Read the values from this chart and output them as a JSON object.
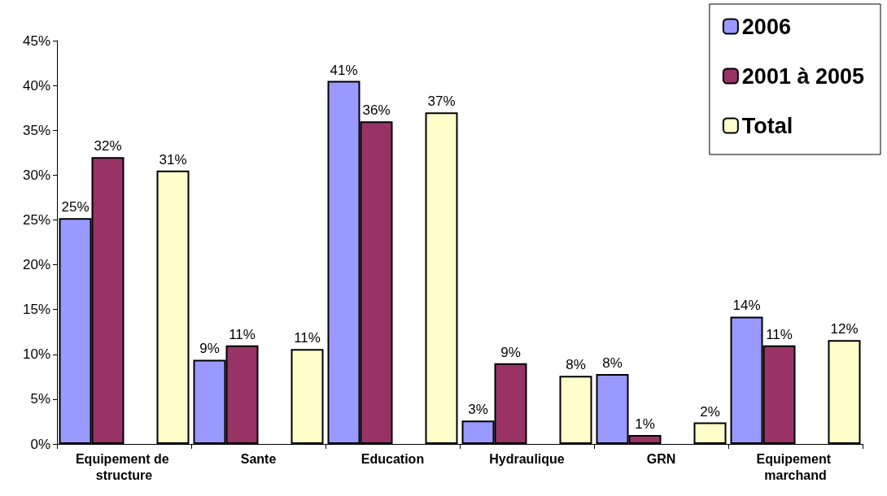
{
  "chart_data": {
    "type": "bar",
    "categories": [
      "Equipement de structure",
      "Sante",
      "Education",
      "Hydraulique",
      "GRN",
      "Equipement marchand"
    ],
    "series": [
      {
        "name": "2006",
        "color": "#9999ff",
        "values": [
          25.2,
          9.4,
          40.5,
          2.6,
          7.8,
          14.2
        ],
        "value_labels": [
          "25%",
          "9%",
          "41%",
          "3%",
          "8%",
          "14%"
        ]
      },
      {
        "name": "2001 à 2005",
        "color": "#993366",
        "values": [
          32,
          11,
          36,
          9,
          1,
          11
        ],
        "value_labels": [
          "32%",
          "11%",
          "36%",
          "9%",
          "1%",
          "11%"
        ]
      },
      {
        "name": "Total",
        "color": "#ffffcc",
        "values": [
          30.5,
          10.6,
          37,
          7.6,
          2.4,
          11.6
        ],
        "value_labels": [
          "31%",
          "11%",
          "37%",
          "8%",
          "2%",
          "12%"
        ]
      }
    ],
    "ylim": [
      0,
      45
    ],
    "yticks": [
      {
        "value": 0,
        "label": "0%"
      },
      {
        "value": 5,
        "label": "5%"
      },
      {
        "value": 10,
        "label": "10%"
      },
      {
        "value": 15,
        "label": "15%"
      },
      {
        "value": 20,
        "label": "20%"
      },
      {
        "value": 25,
        "label": "25%"
      },
      {
        "value": 30,
        "label": "30%"
      },
      {
        "value": 35,
        "label": "35%"
      },
      {
        "value": 40,
        "label": "40%"
      },
      {
        "value": 45,
        "label": "45%"
      }
    ],
    "grid": false,
    "legend": "top right"
  }
}
